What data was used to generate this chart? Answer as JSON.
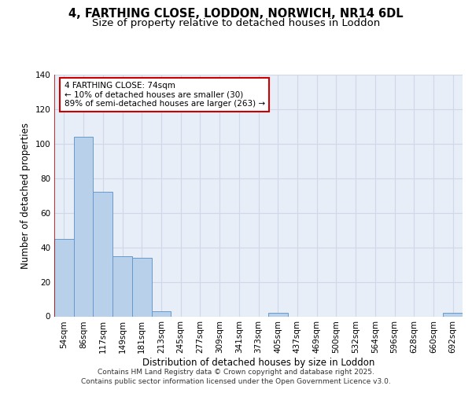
{
  "title_line1": "4, FARTHING CLOSE, LODDON, NORWICH, NR14 6DL",
  "title_line2": "Size of property relative to detached houses in Loddon",
  "xlabel": "Distribution of detached houses by size in Loddon",
  "ylabel": "Number of detached properties",
  "categories": [
    "54sqm",
    "86sqm",
    "117sqm",
    "149sqm",
    "181sqm",
    "213sqm",
    "245sqm",
    "277sqm",
    "309sqm",
    "341sqm",
    "373sqm",
    "405sqm",
    "437sqm",
    "469sqm",
    "500sqm",
    "532sqm",
    "564sqm",
    "596sqm",
    "628sqm",
    "660sqm",
    "692sqm"
  ],
  "values": [
    45,
    104,
    72,
    35,
    34,
    3,
    0,
    0,
    0,
    0,
    0,
    2,
    0,
    0,
    0,
    0,
    0,
    0,
    0,
    0,
    2
  ],
  "bar_color": "#b8d0ea",
  "bar_edge_color": "#6699cc",
  "bar_linewidth": 0.7,
  "vline_color": "#cc0000",
  "vline_x": -0.5,
  "annotation_text": "4 FARTHING CLOSE: 74sqm\n← 10% of detached houses are smaller (30)\n89% of semi-detached houses are larger (263) →",
  "annotation_box_color": "#cc0000",
  "ylim": [
    0,
    140
  ],
  "yticks": [
    0,
    20,
    40,
    60,
    80,
    100,
    120,
    140
  ],
  "grid_color": "#d0d8e8",
  "bg_color": "#e8eef8",
  "footer_line1": "Contains HM Land Registry data © Crown copyright and database right 2025.",
  "footer_line2": "Contains public sector information licensed under the Open Government Licence v3.0.",
  "title_fontsize": 10.5,
  "subtitle_fontsize": 9.5,
  "axis_label_fontsize": 8.5,
  "tick_fontsize": 7.5,
  "annotation_fontsize": 7.5,
  "footer_fontsize": 6.5
}
